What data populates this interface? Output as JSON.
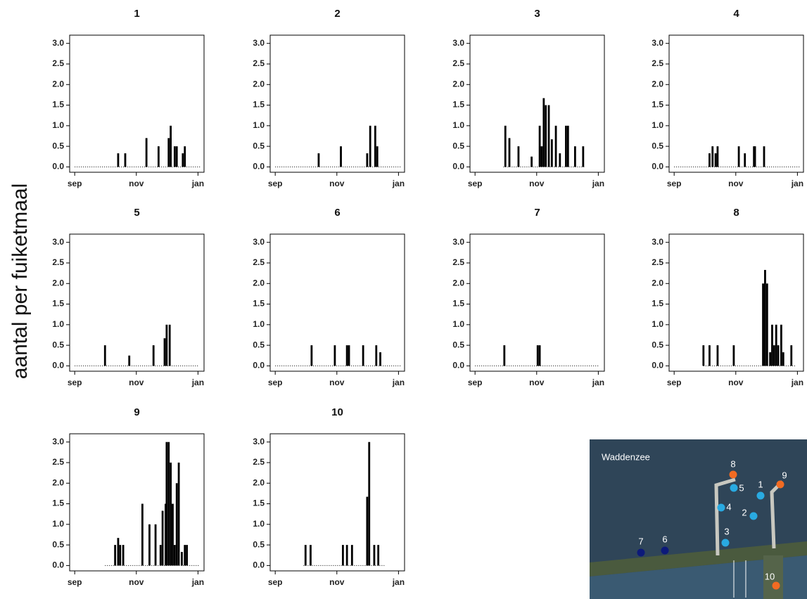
{
  "ylabel": "aantal per fuiketmaal",
  "chart_data": [
    {
      "type": "bar",
      "title": "1",
      "x": [
        0,
        43,
        50,
        71,
        83,
        93,
        95,
        99,
        101,
        107,
        109,
        124
      ],
      "values": [
        0,
        0.33,
        0.33,
        0.7,
        0.5,
        0.7,
        1.0,
        0.5,
        0.5,
        0.33,
        0.5,
        0
      ],
      "color": "#000000",
      "xlim": [
        -5,
        128
      ],
      "xticks": [
        {
          "value": 0,
          "label": "sep"
        },
        {
          "value": 61,
          "label": "nov"
        },
        {
          "value": 122,
          "label": "jan"
        }
      ],
      "ylim": [
        -0.13,
        3.2
      ],
      "yticks": [
        {
          "value": 0,
          "label": "0.0"
        },
        {
          "value": 0.5,
          "label": "0.5"
        },
        {
          "value": 1,
          "label": "1.0"
        },
        {
          "value": 1.5,
          "label": "1.5"
        },
        {
          "value": 2,
          "label": "2.0"
        },
        {
          "value": 2.5,
          "label": "2.5"
        },
        {
          "value": 3,
          "label": "3.0"
        }
      ]
    },
    {
      "type": "bar",
      "title": "2",
      "x": [
        0,
        43,
        65,
        91,
        94,
        99,
        101,
        124
      ],
      "values": [
        0,
        0.33,
        0.5,
        0.33,
        1.0,
        1.0,
        0.5,
        0
      ],
      "color": "#000000",
      "xlim": [
        -5,
        128
      ],
      "xticks": [
        {
          "value": 0,
          "label": "sep"
        },
        {
          "value": 61,
          "label": "nov"
        },
        {
          "value": 122,
          "label": "jan"
        }
      ],
      "ylim": [
        -0.13,
        3.2
      ],
      "yticks": [
        {
          "value": 0,
          "label": "0.0"
        },
        {
          "value": 0.5,
          "label": "0.5"
        },
        {
          "value": 1,
          "label": "1.0"
        },
        {
          "value": 1.5,
          "label": "1.5"
        },
        {
          "value": 2,
          "label": "2.0"
        },
        {
          "value": 2.5,
          "label": "2.5"
        },
        {
          "value": 3,
          "label": "3.0"
        }
      ]
    },
    {
      "type": "bar",
      "title": "3",
      "x": [
        28,
        30,
        34,
        43,
        56,
        64,
        66,
        68,
        70,
        73,
        76,
        80,
        84,
        90,
        92,
        99,
        107,
        108
      ],
      "values": [
        0,
        1.0,
        0.7,
        0.5,
        0.25,
        1.0,
        0.5,
        1.67,
        1.5,
        1.5,
        0.67,
        1.0,
        0.33,
        1.0,
        1.0,
        0.5,
        0.5,
        0
      ],
      "color": "#000000",
      "xlim": [
        -5,
        128
      ],
      "xticks": [
        {
          "value": 0,
          "label": "sep"
        },
        {
          "value": 61,
          "label": "nov"
        },
        {
          "value": 122,
          "label": "jan"
        }
      ],
      "ylim": [
        -0.13,
        3.2
      ],
      "yticks": [
        {
          "value": 0,
          "label": "0.0"
        },
        {
          "value": 0.5,
          "label": "0.5"
        },
        {
          "value": 1,
          "label": "1.0"
        },
        {
          "value": 1.5,
          "label": "1.5"
        },
        {
          "value": 2,
          "label": "2.0"
        },
        {
          "value": 2.5,
          "label": "2.5"
        },
        {
          "value": 3,
          "label": "3.0"
        }
      ]
    },
    {
      "type": "bar",
      "title": "4",
      "x": [
        0,
        35,
        38,
        41,
        43,
        64,
        70,
        79,
        80,
        89,
        124
      ],
      "values": [
        0,
        0.33,
        0.5,
        0.33,
        0.5,
        0.5,
        0.33,
        0.5,
        0.5,
        0.5,
        0
      ],
      "color": "#000000",
      "xlim": [
        -5,
        128
      ],
      "xticks": [
        {
          "value": 0,
          "label": "sep"
        },
        {
          "value": 61,
          "label": "nov"
        },
        {
          "value": 122,
          "label": "jan"
        }
      ],
      "ylim": [
        -0.13,
        3.2
      ],
      "yticks": [
        {
          "value": 0,
          "label": "0.0"
        },
        {
          "value": 0.5,
          "label": "0.5"
        },
        {
          "value": 1,
          "label": "1.0"
        },
        {
          "value": 1.5,
          "label": "1.5"
        },
        {
          "value": 2,
          "label": "2.0"
        },
        {
          "value": 2.5,
          "label": "2.5"
        },
        {
          "value": 3,
          "label": "3.0"
        }
      ]
    },
    {
      "type": "bar",
      "title": "5",
      "x": [
        0,
        30,
        54,
        78,
        89,
        91,
        94,
        122
      ],
      "values": [
        0,
        0.5,
        0.25,
        0.5,
        0.67,
        1.0,
        1.0,
        0
      ],
      "color": "#000000",
      "xlim": [
        -5,
        128
      ],
      "xticks": [
        {
          "value": 0,
          "label": "sep"
        },
        {
          "value": 61,
          "label": "nov"
        },
        {
          "value": 122,
          "label": "jan"
        }
      ],
      "ylim": [
        -0.13,
        3.2
      ],
      "yticks": [
        {
          "value": 0,
          "label": "0.0"
        },
        {
          "value": 0.5,
          "label": "0.5"
        },
        {
          "value": 1,
          "label": "1.0"
        },
        {
          "value": 1.5,
          "label": "1.5"
        },
        {
          "value": 2,
          "label": "2.0"
        },
        {
          "value": 2.5,
          "label": "2.5"
        },
        {
          "value": 3,
          "label": "3.0"
        }
      ]
    },
    {
      "type": "bar",
      "title": "6",
      "x": [
        0,
        36,
        59,
        71,
        73,
        87,
        100,
        104,
        124
      ],
      "values": [
        0,
        0.5,
        0.5,
        0.5,
        0.5,
        0.5,
        0.5,
        0.33,
        0
      ],
      "color": "#000000",
      "xlim": [
        -5,
        128
      ],
      "xticks": [
        {
          "value": 0,
          "label": "sep"
        },
        {
          "value": 61,
          "label": "nov"
        },
        {
          "value": 122,
          "label": "jan"
        }
      ],
      "ylim": [
        -0.13,
        3.2
      ],
      "yticks": [
        {
          "value": 0,
          "label": "0.0"
        },
        {
          "value": 0.5,
          "label": "0.5"
        },
        {
          "value": 1,
          "label": "1.0"
        },
        {
          "value": 1.5,
          "label": "1.5"
        },
        {
          "value": 2,
          "label": "2.0"
        },
        {
          "value": 2.5,
          "label": "2.5"
        },
        {
          "value": 3,
          "label": "3.0"
        }
      ]
    },
    {
      "type": "bar",
      "title": "7",
      "x": [
        0,
        29,
        62,
        64,
        122
      ],
      "values": [
        0,
        0.5,
        0.5,
        0.5,
        0
      ],
      "color": "#000000",
      "xlim": [
        -5,
        128
      ],
      "xticks": [
        {
          "value": 0,
          "label": "sep"
        },
        {
          "value": 61,
          "label": "nov"
        },
        {
          "value": 122,
          "label": "jan"
        }
      ],
      "ylim": [
        -0.13,
        3.2
      ],
      "yticks": [
        {
          "value": 0,
          "label": "0.0"
        },
        {
          "value": 0.5,
          "label": "0.5"
        },
        {
          "value": 1,
          "label": "1.0"
        },
        {
          "value": 1.5,
          "label": "1.5"
        },
        {
          "value": 2,
          "label": "2.0"
        },
        {
          "value": 2.5,
          "label": "2.5"
        },
        {
          "value": 3,
          "label": "3.0"
        }
      ]
    },
    {
      "type": "bar",
      "title": "8",
      "x": [
        29,
        35,
        43,
        59,
        88,
        90,
        92,
        95,
        97,
        99,
        101,
        103,
        106,
        108,
        116,
        120
      ],
      "values": [
        0.5,
        0.5,
        0.5,
        0.5,
        2.0,
        2.33,
        2.0,
        0.33,
        1.0,
        0.5,
        1.0,
        0.5,
        1.0,
        0.33,
        0.5,
        0
      ],
      "color": "#000000",
      "xlim": [
        -5,
        128
      ],
      "xticks": [
        {
          "value": 0,
          "label": "sep"
        },
        {
          "value": 61,
          "label": "nov"
        },
        {
          "value": 122,
          "label": "jan"
        }
      ],
      "ylim": [
        -0.13,
        3.2
      ],
      "yticks": [
        {
          "value": 0,
          "label": "0.0"
        },
        {
          "value": 0.5,
          "label": "0.5"
        },
        {
          "value": 1,
          "label": "1.0"
        },
        {
          "value": 1.5,
          "label": "1.5"
        },
        {
          "value": 2,
          "label": "2.0"
        },
        {
          "value": 2.5,
          "label": "2.5"
        },
        {
          "value": 3,
          "label": "3.0"
        }
      ]
    },
    {
      "type": "bar",
      "title": "9",
      "x": [
        30,
        40,
        43,
        45,
        48,
        67,
        74,
        80,
        85,
        87,
        90,
        91,
        93,
        95,
        97,
        99,
        101,
        103,
        106,
        109,
        111,
        124
      ],
      "values": [
        0,
        0.5,
        0.67,
        0.5,
        0.5,
        1.5,
        1.0,
        1.0,
        0.5,
        1.33,
        1.5,
        3.0,
        3.0,
        2.5,
        1.5,
        0.5,
        2.0,
        2.5,
        0.33,
        0.5,
        0.5,
        0
      ],
      "color": "#000000",
      "xlim": [
        -5,
        128
      ],
      "xticks": [
        {
          "value": 0,
          "label": "sep"
        },
        {
          "value": 61,
          "label": "nov"
        },
        {
          "value": 122,
          "label": "jan"
        }
      ],
      "ylim": [
        -0.13,
        3.2
      ],
      "yticks": [
        {
          "value": 0,
          "label": "0.0"
        },
        {
          "value": 0.5,
          "label": "0.5"
        },
        {
          "value": 1,
          "label": "1.0"
        },
        {
          "value": 1.5,
          "label": "1.5"
        },
        {
          "value": 2,
          "label": "2.0"
        },
        {
          "value": 2.5,
          "label": "2.5"
        },
        {
          "value": 3,
          "label": "3.0"
        }
      ]
    },
    {
      "type": "bar",
      "title": "10",
      "x": [
        28,
        30,
        35,
        67,
        71,
        76,
        91,
        93,
        98,
        102,
        108
      ],
      "values": [
        0,
        0.5,
        0.5,
        0.5,
        0.5,
        0.5,
        1.67,
        3.0,
        0.5,
        0.5,
        0
      ],
      "color": "#000000",
      "xlim": [
        -5,
        128
      ],
      "xticks": [
        {
          "value": 0,
          "label": "sep"
        },
        {
          "value": 61,
          "label": "nov"
        },
        {
          "value": 122,
          "label": "jan"
        }
      ],
      "ylim": [
        -0.13,
        3.2
      ],
      "yticks": [
        {
          "value": 0,
          "label": "0.0"
        },
        {
          "value": 0.5,
          "label": "0.5"
        },
        {
          "value": 1,
          "label": "1.0"
        },
        {
          "value": 1.5,
          "label": "1.5"
        },
        {
          "value": 2,
          "label": "2.0"
        },
        {
          "value": 2.5,
          "label": "2.5"
        },
        {
          "value": 3,
          "label": "3.0"
        }
      ]
    }
  ],
  "map": {
    "title": "Waddenzee",
    "points": [
      {
        "label": "8",
        "color": "#f26b22"
      },
      {
        "label": "9",
        "color": "#f26b22"
      },
      {
        "label": "5",
        "color": "#29aae1"
      },
      {
        "label": "1",
        "color": "#29aae1"
      },
      {
        "label": "4",
        "color": "#29aae1"
      },
      {
        "label": "2",
        "color": "#29aae1"
      },
      {
        "label": "3",
        "color": "#29aae1"
      },
      {
        "label": "7",
        "color": "#0d1a7a"
      },
      {
        "label": "6",
        "color": "#0d1a7a"
      },
      {
        "label": "10",
        "color": "#f26b22"
      }
    ]
  }
}
